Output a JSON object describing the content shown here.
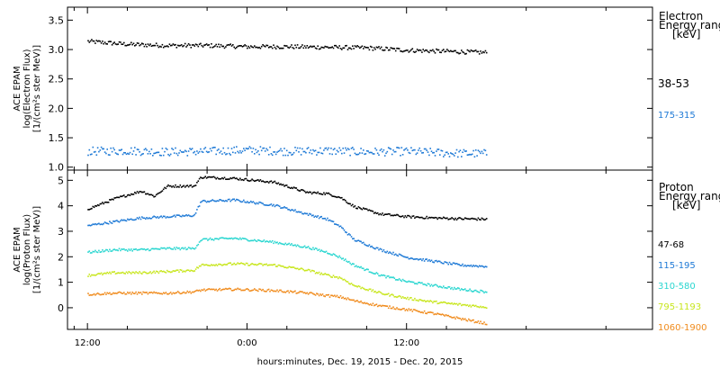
{
  "chart_data": [
    {
      "type": "scatter",
      "ylabel_lines": [
        "ACE EPAM",
        "log(Electron Flux)",
        "[1/(cm²s ster MeV)]"
      ],
      "ylim": [
        0.95,
        3.72
      ],
      "yticks": [
        "1.0",
        "1.5",
        "2.0",
        "2.5",
        "3.0",
        "3.5"
      ],
      "ytick_values": [
        1.0,
        1.5,
        2.0,
        2.5,
        3.0,
        3.5
      ],
      "legend_title": [
        "Electron",
        "Energy ranges",
        "[keV]"
      ],
      "series": [
        {
          "name": "38-53",
          "color": "#000000",
          "x": [
            0,
            6,
            12,
            18,
            24,
            30,
            36,
            42,
            48,
            54,
            60
          ],
          "y": [
            3.15,
            3.1,
            3.08,
            3.08,
            3.06,
            3.06,
            3.05,
            3.04,
            3.0,
            2.98,
            2.96
          ]
        },
        {
          "name": "175-315",
          "color": "#1f7ad6",
          "x": [
            0,
            6,
            12,
            18,
            24,
            30,
            36,
            42,
            48,
            54,
            60
          ],
          "y": [
            1.28,
            1.29,
            1.27,
            1.28,
            1.3,
            1.28,
            1.29,
            1.27,
            1.28,
            1.25,
            1.24
          ]
        }
      ]
    },
    {
      "type": "scatter",
      "ylabel_lines": [
        "ACE EPAM",
        "log(Proton Flux)",
        "[1/(cm²s ster MeV)]"
      ],
      "ylim": [
        -0.85,
        5.4
      ],
      "yticks": [
        "0",
        "1",
        "2",
        "3",
        "4",
        "5"
      ],
      "ytick_values": [
        0,
        1,
        2,
        3,
        4,
        5
      ],
      "legend_title": [
        "Proton",
        "Energy ranges",
        "[keV]"
      ],
      "series": [
        {
          "name": "47-68",
          "color": "#000000",
          "x": [
            0,
            4,
            8,
            10,
            12,
            16,
            17,
            22,
            28,
            33,
            36,
            38,
            40,
            44,
            48,
            52,
            56,
            60
          ],
          "y": [
            3.9,
            4.3,
            4.6,
            4.4,
            4.8,
            4.8,
            5.15,
            5.1,
            4.95,
            4.55,
            4.5,
            4.35,
            4.0,
            3.7,
            3.6,
            3.55,
            3.52,
            3.5
          ]
        },
        {
          "name": "115-195",
          "color": "#1f7ad6",
          "x": [
            0,
            4,
            8,
            12,
            16,
            17,
            22,
            28,
            33,
            36,
            38,
            40,
            44,
            48,
            52,
            56,
            60
          ],
          "y": [
            3.25,
            3.4,
            3.55,
            3.6,
            3.65,
            4.2,
            4.25,
            4.05,
            3.7,
            3.5,
            3.2,
            2.7,
            2.3,
            2.0,
            1.85,
            1.7,
            1.65
          ]
        },
        {
          "name": "310-580",
          "color": "#2ad6d0",
          "x": [
            0,
            4,
            8,
            12,
            16,
            17,
            22,
            28,
            33,
            36,
            38,
            40,
            44,
            48,
            52,
            56,
            60
          ],
          "y": [
            2.2,
            2.3,
            2.3,
            2.35,
            2.35,
            2.7,
            2.75,
            2.6,
            2.4,
            2.2,
            2.0,
            1.7,
            1.3,
            1.05,
            0.9,
            0.75,
            0.65
          ]
        },
        {
          "name": "795-1193",
          "color": "#c8e61e",
          "x": [
            0,
            4,
            8,
            12,
            16,
            17,
            22,
            28,
            33,
            36,
            38,
            40,
            44,
            48,
            52,
            56,
            60
          ],
          "y": [
            1.3,
            1.4,
            1.4,
            1.45,
            1.5,
            1.7,
            1.75,
            1.7,
            1.5,
            1.3,
            1.2,
            0.9,
            0.6,
            0.4,
            0.25,
            0.15,
            0.05
          ]
        },
        {
          "name": "1060-1900",
          "color": "#f08c1e",
          "x": [
            0,
            4,
            8,
            12,
            16,
            17,
            22,
            28,
            33,
            36,
            38,
            40,
            44,
            48,
            52,
            56,
            60
          ],
          "y": [
            0.55,
            0.6,
            0.6,
            0.6,
            0.65,
            0.72,
            0.75,
            0.7,
            0.6,
            0.5,
            0.45,
            0.3,
            0.1,
            -0.05,
            -0.2,
            -0.4,
            -0.6
          ]
        }
      ]
    }
  ],
  "xaxis": {
    "label": "hours:minutes, Dec. 19, 2015 - Dec. 20, 2015",
    "xlim": [
      -3,
      85
    ],
    "ticks": [
      {
        "x": 0,
        "label": "12:00"
      },
      {
        "x": 24,
        "label": "0:00"
      },
      {
        "x": 48,
        "label": "12:00"
      }
    ],
    "unlabeled_ticks": [
      -2,
      6,
      18,
      30,
      42,
      54,
      66,
      78
    ]
  }
}
